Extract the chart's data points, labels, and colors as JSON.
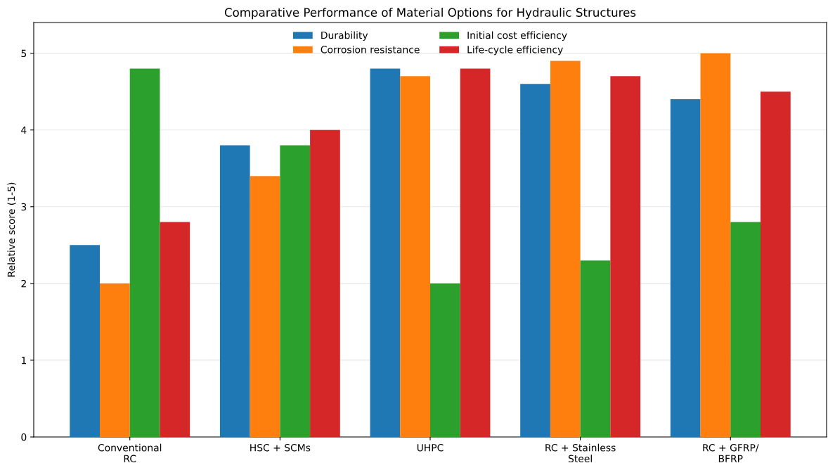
{
  "chart_data": {
    "type": "bar",
    "title": "Comparative Performance of Material Options for Hydraulic Structures",
    "ylabel": "Relative score (1-5)",
    "categories": [
      "Conventional\nRC",
      "HSC + SCMs",
      "UHPC",
      "RC + Stainless\nSteel",
      "RC + GFRP/\nBFRP"
    ],
    "series": [
      {
        "name": "Durability",
        "color": "#1f77b4",
        "values": [
          2.5,
          3.8,
          4.8,
          4.6,
          4.4
        ]
      },
      {
        "name": "Corrosion resistance",
        "color": "#ff7f0e",
        "values": [
          2.0,
          3.4,
          4.7,
          4.9,
          5.0
        ]
      },
      {
        "name": "Initial cost efficiency",
        "color": "#2ca02c",
        "values": [
          4.8,
          3.8,
          2.0,
          2.3,
          2.8
        ]
      },
      {
        "name": "Life-cycle efficiency",
        "color": "#d62728",
        "values": [
          2.8,
          4.0,
          4.8,
          4.7,
          4.5
        ]
      }
    ],
    "ylim": [
      0,
      5.4
    ],
    "yticks": [
      0,
      1,
      2,
      3,
      4,
      5
    ],
    "grid": "y",
    "legend": "top"
  }
}
